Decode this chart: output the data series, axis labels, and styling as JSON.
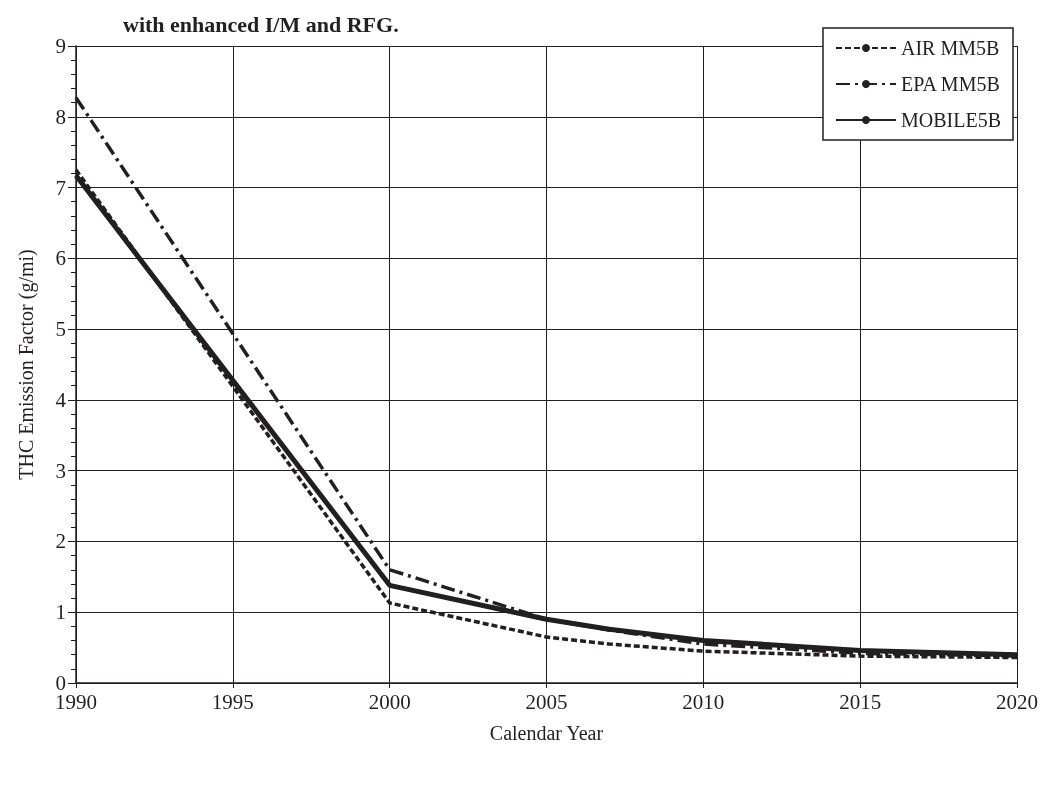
{
  "chart_data": {
    "type": "line",
    "title": "with enhanced I/M and RFG.",
    "xlabel": "Calendar Year",
    "ylabel": "THC Emission Factor (g/mi)",
    "x": [
      1990,
      2000,
      2005,
      2007,
      2010,
      2015,
      2020
    ],
    "xlim": [
      1990,
      2020
    ],
    "xticks": [
      1990,
      1995,
      2000,
      2005,
      2010,
      2015,
      2020
    ],
    "ylim": [
      0,
      9
    ],
    "yticks": [
      0,
      1,
      2,
      3,
      4,
      5,
      6,
      7,
      8,
      9
    ],
    "grid": true,
    "legend": "top right",
    "marker": "none",
    "series": [
      {
        "name": "AIR MM5B",
        "color": "#231f20",
        "line_style": "dashed",
        "values": [
          7.25,
          1.13,
          0.65,
          0.55,
          0.45,
          0.38,
          0.36
        ]
      },
      {
        "name": "EPA MM5B",
        "color": "#231f20",
        "line_style": "dashdot",
        "values": [
          8.27,
          1.6,
          0.9,
          0.75,
          0.55,
          0.42,
          0.38
        ]
      },
      {
        "name": "MOBILE5B",
        "color": "#231f20",
        "line_style": "solid",
        "values": [
          7.17,
          1.38,
          0.9,
          0.76,
          0.6,
          0.46,
          0.4
        ]
      }
    ]
  }
}
